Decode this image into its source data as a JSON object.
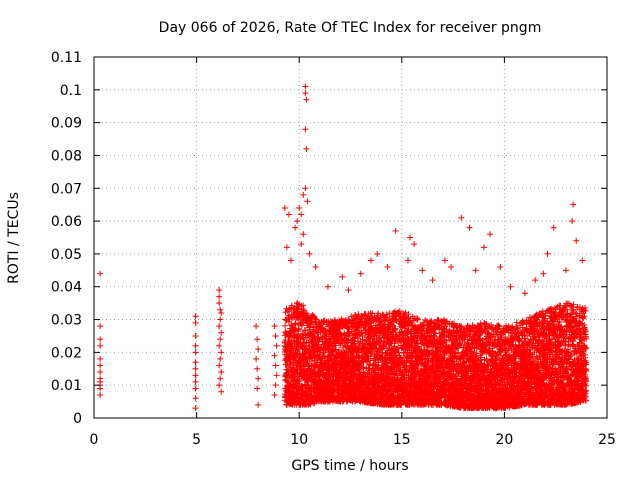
{
  "chart_data": {
    "type": "scatter",
    "title": "Day 066 of 2026, Rate Of TEC Index for receiver pngm",
    "xlabel": "GPS time / hours",
    "ylabel": "ROTI / TECUs",
    "xlim": [
      0,
      25
    ],
    "ylim": [
      0,
      0.11
    ],
    "x_ticks": [
      "0",
      "5",
      "10",
      "15",
      "20",
      "25"
    ],
    "y_ticks": [
      "0",
      "0.01",
      "0.02",
      "0.03",
      "0.04",
      "0.05",
      "0.06",
      "0.07",
      "0.08",
      "0.09",
      "0.1",
      "0.11"
    ],
    "grid": true,
    "marker": "plus",
    "marker_color": "#ff0000",
    "series": [
      {
        "name": "ROTI",
        "points": [
          [
            0.3,
            0.044
          ],
          [
            0.3,
            0.028
          ],
          [
            0.3,
            0.024
          ],
          [
            0.3,
            0.022
          ],
          [
            0.3,
            0.018
          ],
          [
            0.3,
            0.016
          ],
          [
            0.3,
            0.014
          ],
          [
            0.3,
            0.012
          ],
          [
            0.3,
            0.011
          ],
          [
            0.3,
            0.01
          ],
          [
            0.3,
            0.009
          ],
          [
            0.3,
            0.007
          ],
          [
            4.95,
            0.031
          ],
          [
            4.95,
            0.029
          ],
          [
            4.95,
            0.025
          ],
          [
            4.95,
            0.022
          ],
          [
            4.95,
            0.02
          ],
          [
            4.95,
            0.017
          ],
          [
            4.95,
            0.015
          ],
          [
            4.95,
            0.013
          ],
          [
            4.95,
            0.011
          ],
          [
            4.95,
            0.009
          ],
          [
            4.95,
            0.006
          ],
          [
            4.95,
            0.003
          ],
          [
            6.1,
            0.039
          ],
          [
            6.1,
            0.037
          ],
          [
            6.1,
            0.035
          ],
          [
            6.15,
            0.033
          ],
          [
            6.2,
            0.032
          ],
          [
            6.15,
            0.03
          ],
          [
            6.1,
            0.028
          ],
          [
            6.2,
            0.026
          ],
          [
            6.15,
            0.024
          ],
          [
            6.1,
            0.022
          ],
          [
            6.2,
            0.02
          ],
          [
            6.15,
            0.018
          ],
          [
            6.1,
            0.016
          ],
          [
            6.2,
            0.014
          ],
          [
            6.15,
            0.012
          ],
          [
            6.1,
            0.01
          ],
          [
            6.2,
            0.008
          ],
          [
            7.9,
            0.028
          ],
          [
            7.95,
            0.024
          ],
          [
            8.0,
            0.021
          ],
          [
            7.9,
            0.018
          ],
          [
            7.95,
            0.015
          ],
          [
            8.0,
            0.012
          ],
          [
            7.95,
            0.009
          ],
          [
            8.0,
            0.004
          ],
          [
            8.8,
            0.028
          ],
          [
            8.85,
            0.025
          ],
          [
            8.9,
            0.022
          ],
          [
            8.8,
            0.019
          ],
          [
            8.85,
            0.016
          ],
          [
            8.9,
            0.013
          ],
          [
            8.85,
            0.01
          ],
          [
            8.8,
            0.007
          ],
          [
            9.3,
            0.064
          ],
          [
            9.5,
            0.062
          ],
          [
            9.8,
            0.058
          ],
          [
            9.9,
            0.06
          ],
          [
            10.0,
            0.064
          ],
          [
            10.1,
            0.062
          ],
          [
            10.2,
            0.068
          ],
          [
            10.3,
            0.07
          ],
          [
            10.4,
            0.066
          ],
          [
            10.2,
            0.056
          ],
          [
            10.1,
            0.053
          ],
          [
            10.3,
            0.101
          ],
          [
            10.3,
            0.099
          ],
          [
            10.35,
            0.097
          ],
          [
            10.3,
            0.088
          ],
          [
            10.35,
            0.082
          ],
          [
            9.4,
            0.052
          ],
          [
            9.6,
            0.048
          ],
          [
            10.5,
            0.05
          ],
          [
            10.8,
            0.046
          ],
          [
            11.4,
            0.04
          ],
          [
            12.1,
            0.043
          ],
          [
            12.4,
            0.039
          ],
          [
            13.0,
            0.044
          ],
          [
            13.5,
            0.048
          ],
          [
            13.8,
            0.05
          ],
          [
            14.3,
            0.046
          ],
          [
            14.7,
            0.057
          ],
          [
            15.3,
            0.048
          ],
          [
            15.4,
            0.055
          ],
          [
            15.6,
            0.053
          ],
          [
            16.0,
            0.045
          ],
          [
            16.5,
            0.042
          ],
          [
            17.1,
            0.048
          ],
          [
            17.4,
            0.046
          ],
          [
            17.9,
            0.061
          ],
          [
            18.3,
            0.058
          ],
          [
            18.6,
            0.045
          ],
          [
            19.0,
            0.052
          ],
          [
            19.3,
            0.056
          ],
          [
            19.8,
            0.046
          ],
          [
            20.3,
            0.04
          ],
          [
            21.0,
            0.038
          ],
          [
            21.5,
            0.042
          ],
          [
            21.9,
            0.044
          ],
          [
            22.1,
            0.05
          ],
          [
            22.4,
            0.058
          ],
          [
            23.0,
            0.045
          ],
          [
            23.3,
            0.06
          ],
          [
            23.35,
            0.065
          ],
          [
            23.5,
            0.054
          ],
          [
            23.8,
            0.048
          ]
        ],
        "envelope": {
          "hours": [
            9.0,
            10.0,
            10.5,
            11.0,
            12.0,
            13.0,
            14.0,
            15.0,
            16.0,
            17.0,
            18.0,
            19.0,
            20.0,
            21.0,
            22.0,
            23.0,
            24.0
          ],
          "low": [
            0.004,
            0.004,
            0.004,
            0.005,
            0.005,
            0.005,
            0.004,
            0.004,
            0.004,
            0.004,
            0.003,
            0.003,
            0.003,
            0.004,
            0.004,
            0.004,
            0.005
          ],
          "high": [
            0.032,
            0.036,
            0.032,
            0.03,
            0.03,
            0.032,
            0.032,
            0.033,
            0.03,
            0.03,
            0.028,
            0.029,
            0.028,
            0.03,
            0.033,
            0.035,
            0.034
          ]
        }
      }
    ]
  }
}
